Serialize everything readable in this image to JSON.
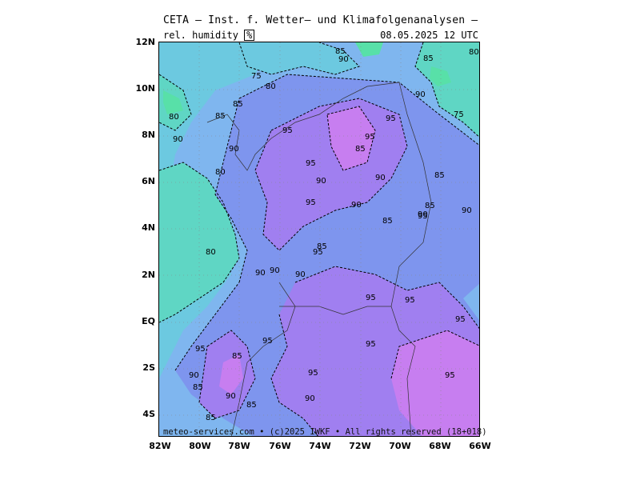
{
  "header": {
    "title": "CETA — Inst. f. Wetter— und Klimafolgenanalysen —",
    "variable_label": "rel. humidity",
    "unit": "%",
    "datetime": "08.05.2025 12 UTC"
  },
  "footer": {
    "copyright": "meteo-services.com • (c)2025 IWKF • All rights reserved (18+018)"
  },
  "axes": {
    "lat_ticks": [
      "12N",
      "10N",
      "8N",
      "6N",
      "4N",
      "2N",
      "EQ",
      "2S",
      "4S"
    ],
    "lon_ticks": [
      "82W",
      "80W",
      "78W",
      "76W",
      "74W",
      "72W",
      "70W",
      "68W",
      "66W"
    ]
  },
  "colors": {
    "teal_low": "#5fd6c4",
    "cyan": "#6cc9e0",
    "light_blue": "#7fb6ef",
    "blue": "#7e95ee",
    "purple": "#a07ff0",
    "magenta": "#c77ef0",
    "green_low": "#58e0a8"
  },
  "contour_labels": [
    "75",
    "80",
    "85",
    "90",
    "95"
  ]
}
